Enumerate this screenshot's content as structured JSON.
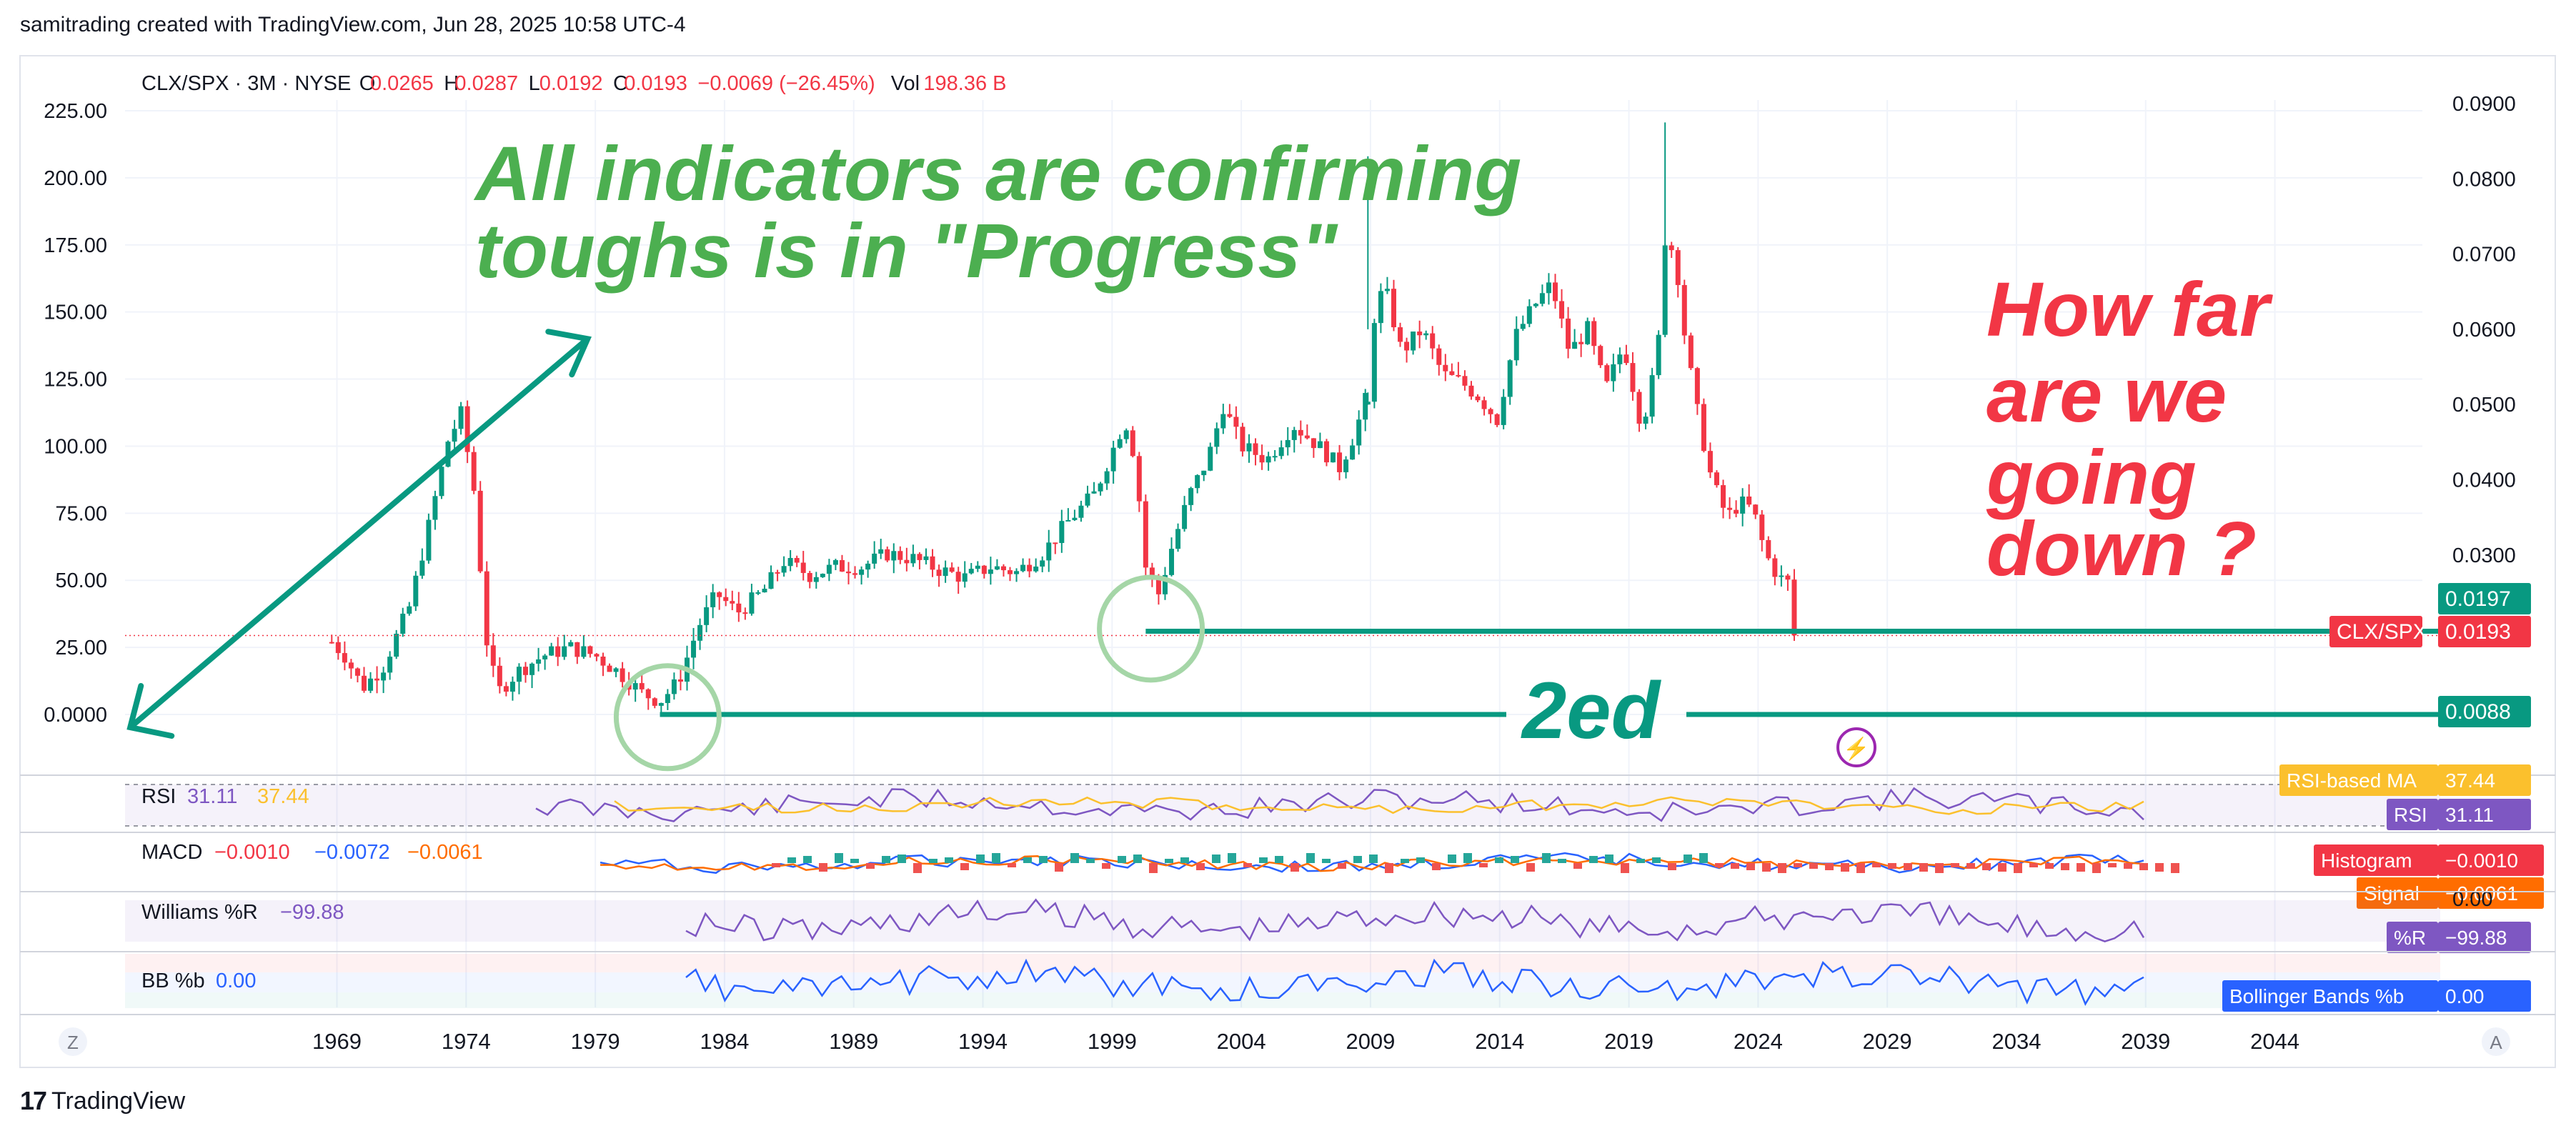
{
  "header": {
    "created_text": "samitrading created with TradingView.com, Jun 28, 2025 10:58 UTC-4",
    "footer_brand": "TradingView"
  },
  "legend": {
    "symbol": "CLX/SPX · 3M · NYSE",
    "o_label": "O",
    "o_value": "0.0265",
    "h_label": "H",
    "h_value": "0.0287",
    "l_label": "L",
    "l_value": "0.0192",
    "c_label": "C",
    "c_value": "0.0193",
    "change": "−0.0069 (−26.45%)",
    "vol_label": "Vol",
    "vol_value": "198.36 B"
  },
  "annotations": {
    "headline_line1": "All indicators are confirming",
    "headline_line2": "toughs is in \"Progress\"",
    "question_line1": "How far",
    "question_line2": "are we",
    "question_line3": "going",
    "question_line4": "down ?",
    "second_label": "2ed"
  },
  "labels": {
    "price_current": "0.0197",
    "symbol_tag": "CLX/SPX",
    "symbol_tag_value": "0.0193",
    "support_value": "0.0088",
    "rsi_ma_label": "RSI-based MA",
    "rsi_ma_value": "37.44",
    "rsi_label": "RSI",
    "rsi_value": "31.11",
    "hist_label": "Histogram",
    "hist_value": "−0.0010",
    "signal_label": "Signal",
    "signal_value": "−0.0061",
    "macd_zero": "0.00",
    "wr_label": "%R",
    "wr_value": "−99.88",
    "bb_label": "Bollinger Bands %b",
    "bb_value": "0.00",
    "zoom_left": "Z",
    "zoom_right": "A"
  },
  "panes": {
    "rsi": {
      "name": "RSI",
      "v1": "31.11",
      "v2": "37.44"
    },
    "macd": {
      "name": "MACD",
      "v1": "−0.0010",
      "v2": "−0.0072",
      "v3": "−0.0061"
    },
    "wr": {
      "name": "Williams %R",
      "v1": "−99.88"
    },
    "bb": {
      "name": "BB %b",
      "v1": "0.00"
    }
  },
  "colors": {
    "up": "#089981",
    "down": "#f23645",
    "annotation_green": "#4caf50",
    "annotation_red": "#f23645",
    "teal": "#089981",
    "rsi_line": "#7e57c2",
    "rsi_ma": "#fbc02d",
    "macd_line": "#2962ff",
    "signal_line": "#ff6d00",
    "bb_line": "#2962ff",
    "circle": "#a5d6a7"
  },
  "chart_data": {
    "type": "candlestick",
    "title": "CLX/SPX · 3M · NYSE",
    "left_axis_ticks": [
      "225.00",
      "200.00",
      "175.00",
      "150.00",
      "125.00",
      "100.00",
      "75.00",
      "50.00",
      "25.00",
      "0.0000"
    ],
    "right_axis_ticks": [
      "0.0900",
      "0.0800",
      "0.0700",
      "0.0600",
      "0.0500",
      "0.0400",
      "0.0300"
    ],
    "x_ticks": [
      "1969",
      "1974",
      "1979",
      "1984",
      "1989",
      "1994",
      "1999",
      "2004",
      "2009",
      "2014",
      "2019",
      "2024",
      "2029",
      "2034",
      "2039",
      "2044"
    ],
    "x_range": [
      1960.8,
      2050.4
    ],
    "left_ylim": [
      0,
      225
    ],
    "right_ylim": [
      0.0088,
      0.09
    ],
    "left_series_anchors": [
      [
        1968.8,
        27
      ],
      [
        1969.3,
        22
      ],
      [
        1970.0,
        10
      ],
      [
        1970.8,
        18
      ],
      [
        1971.8,
        40
      ],
      [
        1972.5,
        68
      ],
      [
        1973.3,
        102
      ],
      [
        1973.8,
        112
      ],
      [
        1974.4,
        78
      ],
      [
        1974.7,
        32
      ],
      [
        1975.2,
        8
      ],
      [
        1976.0,
        16
      ],
      [
        1977.0,
        22
      ],
      [
        1978.0,
        25
      ],
      [
        1979.0,
        22
      ],
      [
        1980.0,
        15
      ],
      [
        1980.8,
        8
      ],
      [
        1981.5,
        5
      ],
      [
        1982.2,
        12
      ],
      [
        1983.0,
        33
      ],
      [
        1983.7,
        45
      ],
      [
        1984.5,
        38
      ],
      [
        1985.5,
        46
      ],
      [
        1986.3,
        57
      ],
      [
        1987.3,
        52
      ],
      [
        1988.3,
        55
      ],
      [
        1989.3,
        55
      ],
      [
        1990.3,
        60
      ],
      [
        1991.3,
        58
      ],
      [
        1992.3,
        54
      ],
      [
        1993.3,
        51
      ],
      [
        1994.3,
        55
      ],
      [
        1995.3,
        53
      ],
      [
        1996.3,
        60
      ],
      [
        1997.3,
        72
      ],
      [
        1998.3,
        82
      ],
      [
        1999.0,
        98
      ],
      [
        1999.5,
        110
      ],
      [
        1999.9,
        95
      ],
      [
        2000.3,
        55
      ],
      [
        2000.8,
        45
      ],
      [
        2001.3,
        62
      ],
      [
        2002.0,
        82
      ],
      [
        2002.7,
        95
      ],
      [
        2003.3,
        115
      ],
      [
        2004.0,
        100
      ],
      [
        2005.0,
        95
      ],
      [
        2006.0,
        108
      ],
      [
        2007.0,
        100
      ],
      [
        2007.8,
        92
      ],
      [
        2008.4,
        105
      ],
      [
        2008.9,
        120
      ]
    ],
    "right_series_anchors": [
      [
        2008.9,
        0.05
      ],
      [
        2009.2,
        0.064
      ],
      [
        2009.6,
        0.065
      ],
      [
        2010.2,
        0.057
      ],
      [
        2011.0,
        0.06
      ],
      [
        2011.8,
        0.054
      ],
      [
        2012.5,
        0.053
      ],
      [
        2013.2,
        0.051
      ],
      [
        2013.9,
        0.048
      ],
      [
        2014.6,
        0.059
      ],
      [
        2015.3,
        0.063
      ],
      [
        2016.0,
        0.066
      ],
      [
        2016.7,
        0.057
      ],
      [
        2017.4,
        0.06
      ],
      [
        2018.1,
        0.052
      ],
      [
        2018.8,
        0.058
      ],
      [
        2019.5,
        0.047
      ],
      [
        2020.1,
        0.056
      ],
      [
        2020.4,
        0.072
      ],
      [
        2020.8,
        0.07
      ],
      [
        2021.2,
        0.058
      ],
      [
        2021.7,
        0.048
      ],
      [
        2022.2,
        0.04
      ],
      [
        2022.8,
        0.035
      ],
      [
        2023.3,
        0.037
      ],
      [
        2023.8,
        0.036
      ],
      [
        2024.3,
        0.03
      ],
      [
        2024.8,
        0.027
      ],
      [
        2025.3,
        0.026
      ],
      [
        2025.4,
        0.0193
      ]
    ],
    "trendline_arrow": {
      "from": [
        1961.0,
        0
      ],
      "to": [
        1978.7,
        140
      ]
    },
    "support_lines": [
      {
        "from_x": 2000.3,
        "to_x": 2050.4,
        "y_right": 0.0193
      },
      {
        "from_x": 1981.5,
        "to_x": 2050.4,
        "y_right": 0.0088
      }
    ],
    "highlight_circles": [
      [
        1981.8,
        -1
      ],
      [
        2000.5,
        32
      ]
    ],
    "panes": {
      "rsi": {
        "name": "RSI",
        "value": 31.11,
        "ma": 37.44
      },
      "macd": {
        "name": "MACD",
        "histogram": -0.001,
        "macd": -0.0072,
        "signal": -0.0061
      },
      "williams_r": {
        "name": "Williams %R",
        "value": -99.88
      },
      "bb_percent_b": {
        "name": "BB %b",
        "value": 0.0
      }
    }
  }
}
